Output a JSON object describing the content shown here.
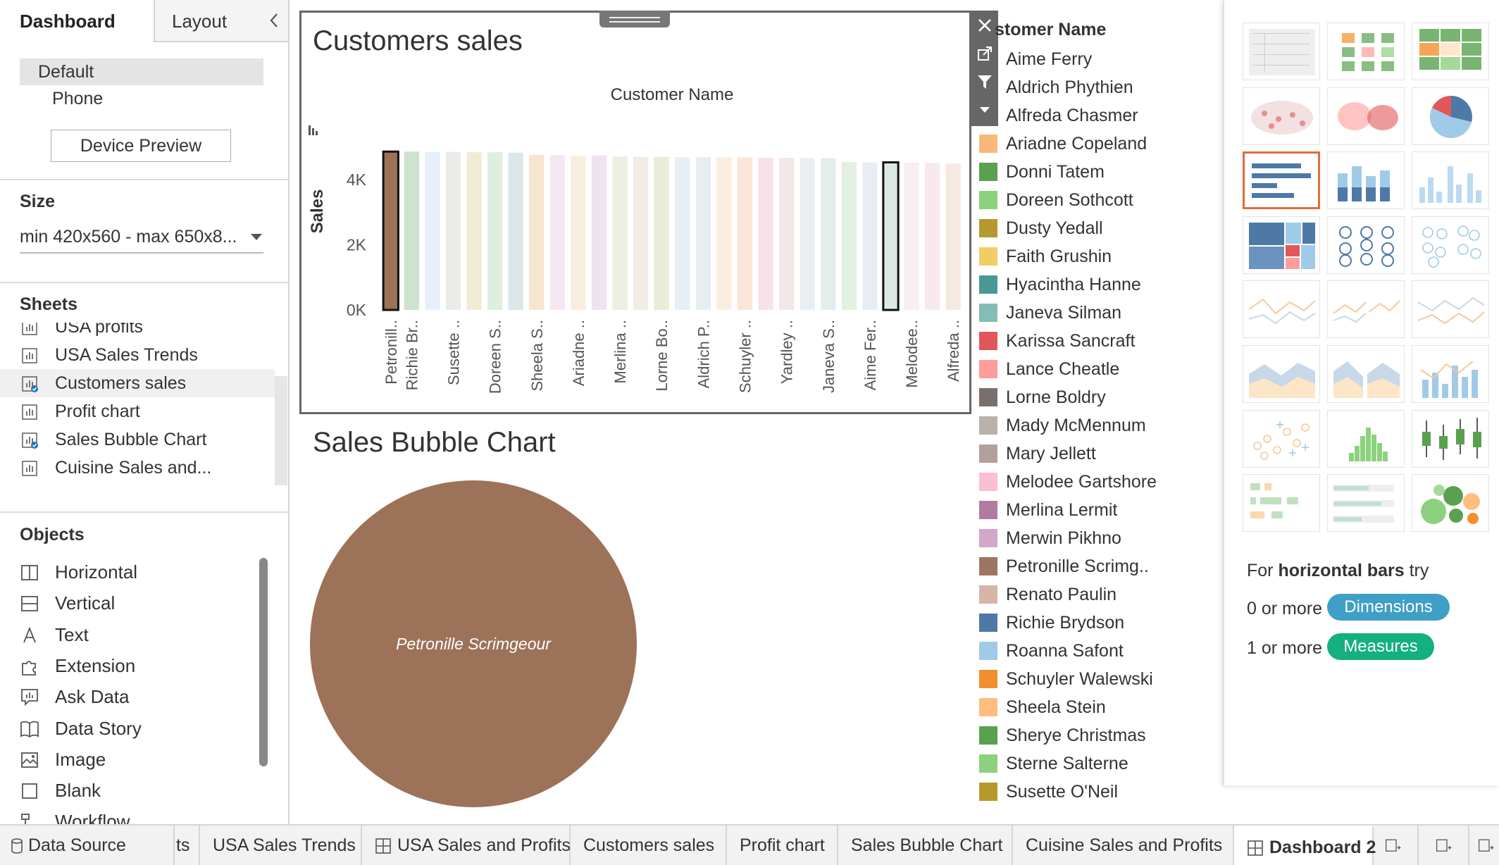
{
  "left_pane": {
    "tabs": {
      "dashboard": "Dashboard",
      "layout": "Layout"
    },
    "devices": {
      "default": "Default",
      "phone": "Phone",
      "preview_button": "Device Preview"
    },
    "size": {
      "title": "Size",
      "value": "min 420x560 - max 650x8..."
    },
    "sheets": {
      "title": "Sheets",
      "items": [
        {
          "label": "USA profits",
          "icon": "worksheet-icon",
          "in_use": false
        },
        {
          "label": "USA Sales Trends",
          "icon": "worksheet-icon",
          "in_use": false
        },
        {
          "label": "Customers sales",
          "icon": "worksheet-icon",
          "in_use": true
        },
        {
          "label": "Profit chart",
          "icon": "worksheet-icon",
          "in_use": false
        },
        {
          "label": "Sales Bubble Chart",
          "icon": "worksheet-icon",
          "in_use": true
        },
        {
          "label": "Cuisine Sales and...",
          "icon": "worksheet-icon",
          "in_use": false
        }
      ]
    },
    "objects": {
      "title": "Objects",
      "items": [
        {
          "label": "Horizontal",
          "icon": "horizontal-container-icon"
        },
        {
          "label": "Vertical",
          "icon": "vertical-container-icon"
        },
        {
          "label": "Text",
          "icon": "text-icon"
        },
        {
          "label": "Extension",
          "icon": "puzzle-icon"
        },
        {
          "label": "Ask Data",
          "icon": "ask-data-icon"
        },
        {
          "label": "Data Story",
          "icon": "book-icon"
        },
        {
          "label": "Image",
          "icon": "image-icon"
        },
        {
          "label": "Blank",
          "icon": "blank-icon"
        },
        {
          "label": "Workflow",
          "icon": "workflow-icon"
        }
      ]
    }
  },
  "customers_chart": {
    "title": "Customers sales",
    "header": "Customer Name",
    "ylabel": "Sales",
    "ticks": [
      "4K",
      "2K",
      "0K"
    ]
  },
  "chart_data": [
    {
      "type": "bar",
      "title": "Customers sales",
      "xlabel": "Customer Name",
      "ylabel": "Sales",
      "ylim": [
        0,
        4800
      ],
      "tick_values": [
        0,
        2000,
        4000
      ],
      "categories": [
        "Petronill..",
        "Richie Br..",
        "",
        "Susette ..",
        "",
        "Doreen S..",
        "",
        "Sheela S..",
        "",
        "Ariadne ..",
        "",
        "Merlina ..",
        "",
        "Lorne Bo..",
        "",
        "Aldrich P..",
        "",
        "Schuyler ..",
        "",
        "Yardley ..",
        "",
        "Janeva S..",
        "",
        "Aime Fer..",
        "",
        "Melodee..",
        "",
        "Alfreda .."
      ],
      "values": [
        4860,
        4860,
        4850,
        4850,
        4840,
        4840,
        4830,
        4760,
        4750,
        4730,
        4740,
        4710,
        4700,
        4700,
        4690,
        4690,
        4680,
        4680,
        4670,
        4670,
        4660,
        4660,
        4540,
        4530,
        4530,
        4520,
        4510,
        4490
      ],
      "colors": [
        "#9c7259",
        "#cde3cd",
        "#e7f0f9",
        "#ebebe8",
        "#f0ecd3",
        "#dfeedd",
        "#dbe7e9",
        "#f8e5d0",
        "#f6e6f1",
        "#f8eddf",
        "#efe3ef",
        "#ebf0e3",
        "#f2ece4",
        "#e9ecd6",
        "#e7eef6",
        "#e7eef2",
        "#f9eedf",
        "#fbe5d9",
        "#f9e1e8",
        "#f3e7e7",
        "#e9eef2",
        "#e4ecec",
        "#e3f0df",
        "#e8edf3",
        "#dce8e6",
        "#f9eef2",
        "#f7e8f0",
        "#f5e9e1"
      ],
      "highlighted": [
        0,
        24
      ]
    },
    {
      "type": "bubble",
      "title": "Sales Bubble Chart",
      "labels": [
        "Petronille Scrimgeour"
      ],
      "colors": [
        "#9c7259"
      ]
    }
  ],
  "bubble_chart": {
    "title": "Sales Bubble Chart",
    "bubble_label": "Petronille Scrimgeour"
  },
  "legend": {
    "title": "stomer Name",
    "items": [
      {
        "label": "Aime Ferry",
        "color": ""
      },
      {
        "label": "Aldrich Phythien",
        "color": ""
      },
      {
        "label": "Alfreda Chasmer",
        "color": ""
      },
      {
        "label": "Ariadne Copeland",
        "color": "#f8b97a"
      },
      {
        "label": "Donni Tatem",
        "color": "#59a14f"
      },
      {
        "label": "Doreen Sothcott",
        "color": "#8cd17d"
      },
      {
        "label": "Dusty Yedall",
        "color": "#b6992d"
      },
      {
        "label": "Faith Grushin",
        "color": "#f1ce63"
      },
      {
        "label": "Hyacintha Hanne",
        "color": "#499894"
      },
      {
        "label": "Janeva Silman",
        "color": "#86bcb6"
      },
      {
        "label": "Karissa Sancraft",
        "color": "#e15759"
      },
      {
        "label": "Lance Cheatle",
        "color": "#ff9d9a"
      },
      {
        "label": "Lorne Boldry",
        "color": "#79706e"
      },
      {
        "label": "Mady McMennum",
        "color": "#bab0ac"
      },
      {
        "label": "Mary Jellett",
        "color": "#b3a09b"
      },
      {
        "label": "Melodee Gartshore",
        "color": "#fabfd2"
      },
      {
        "label": "Merlina Lermit",
        "color": "#b07aa1"
      },
      {
        "label": "Merwin Pikhno",
        "color": "#d4a6c8"
      },
      {
        "label": "Petronille Scrimg..",
        "color": "#9d7660"
      },
      {
        "label": "Renato Paulin",
        "color": "#d7b5a6"
      },
      {
        "label": "Richie Brydson",
        "color": "#4e79a7"
      },
      {
        "label": "Roanna Safont",
        "color": "#a0cbe8"
      },
      {
        "label": "Schuyler Walewski",
        "color": "#f28e2b"
      },
      {
        "label": "Sheela Stein",
        "color": "#ffbe7d"
      },
      {
        "label": "Sherye Christmas",
        "color": "#59a14f"
      },
      {
        "label": "Sterne Salterne",
        "color": "#8cd17d"
      },
      {
        "label": "Susette O'Neil",
        "color": "#b6992d"
      }
    ]
  },
  "zone_tools": [
    "close-icon",
    "open-sheet-icon",
    "filter-icon",
    "more-options-icon"
  ],
  "show_me": {
    "chart_types": [
      "text-table",
      "heat-map",
      "highlight-table",
      "symbol-map",
      "filled-map",
      "pie-chart",
      "horizontal-bars",
      "stacked-bars",
      "side-by-side-bars",
      "treemap",
      "circle-views",
      "side-by-side-circles",
      "continuous-lines",
      "discrete-lines",
      "dual-lines",
      "area-continuous",
      "area-discrete",
      "dual-combination",
      "scatter-plot",
      "histogram",
      "box-and-whisker",
      "gantt",
      "bullet-graph",
      "packed-bubbles"
    ],
    "selected": "horizontal-bars",
    "hint_prefix": "For ",
    "hint_bold": "horizontal bars",
    "hint_suffix": " try",
    "dimensions_req": "0 or more",
    "dimensions_pill": "Dimensions",
    "measures_req": "1 or more",
    "measures_pill": "Measures",
    "dimensions_color": "#3f9fc6",
    "measures_color": "#14b07f"
  },
  "bottom_tabs": [
    {
      "label": "Data Source",
      "icon": "database-icon"
    },
    {
      "label": "ts",
      "icon": ""
    },
    {
      "label": "USA Sales Trends",
      "icon": ""
    },
    {
      "label": "USA Sales and Profits",
      "icon": "dashboard-icon"
    },
    {
      "label": "Customers sales",
      "icon": ""
    },
    {
      "label": "Profit chart",
      "icon": ""
    },
    {
      "label": "Sales Bubble Chart",
      "icon": ""
    },
    {
      "label": "Cuisine Sales and Profits",
      "icon": ""
    },
    {
      "label": "Dashboard 2",
      "icon": "dashboard-icon",
      "active": true
    }
  ],
  "bottom_actions": [
    "new-worksheet-icon",
    "new-dashboard-icon",
    "new-story-icon"
  ]
}
